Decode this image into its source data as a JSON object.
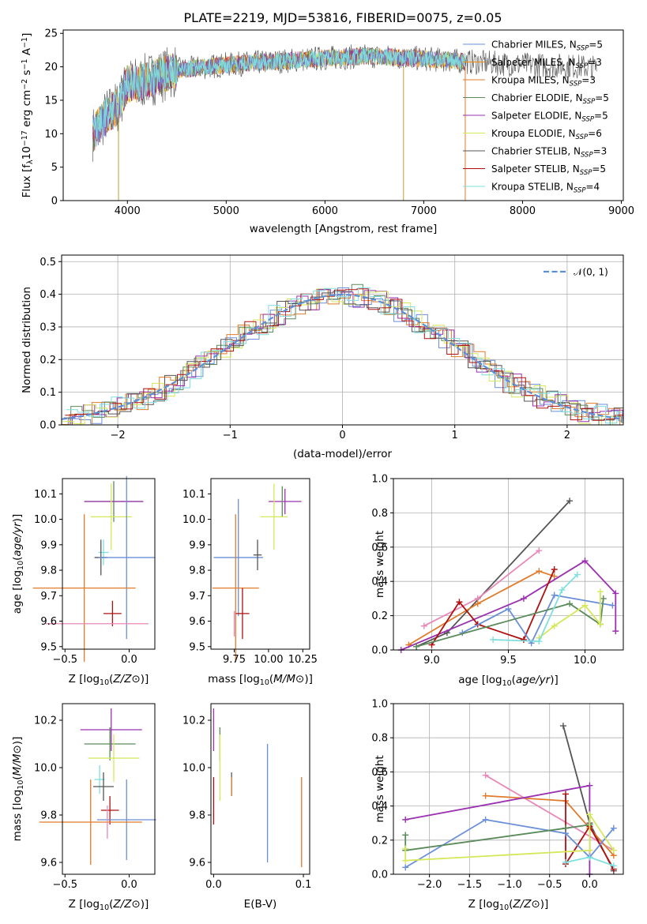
{
  "title": "PLATE=2219, MJD=53816, FIBERID=0075, z=0.05",
  "colors": {
    "Chabrier MILES": "#6a8fd8",
    "Salpeter MILES": "#ff8c00",
    "Kroupa MILES": "#e07b2a",
    "Chabrier ELODIE": "#5b8a5b",
    "Salpeter ELODIE": "#9b30b0",
    "Kroupa ELODIE": "#d4e85a",
    "Chabrier STELIB": "#555555",
    "Salpeter STELIB": "#b01010",
    "Kroupa STELIB": "#7fdede",
    "pink": "#e888b8",
    "normal": "#5b8fd8"
  },
  "chart_data": [
    {
      "id": "spectrum",
      "type": "line",
      "xlabel": "wavelength [Angstrom, rest frame]",
      "ylabel_parts": [
        "Flux [f",
        "λ",
        "10",
        "−17",
        " erg cm",
        "−2",
        " s",
        "−1",
        " A",
        "−1",
        "]"
      ],
      "xlim": [
        3350,
        9020
      ],
      "ylim": [
        0,
        25.5
      ],
      "xticks": [
        4000,
        5000,
        6000,
        7000,
        8000,
        9000
      ],
      "yticks": [
        0,
        5,
        10,
        15,
        20,
        25
      ],
      "continuum": {
        "x": [
          3600,
          3700,
          3800,
          3900,
          4000,
          4100,
          4300,
          4500,
          5000,
          5500,
          6000,
          6500,
          7000,
          7500,
          8000,
          8500,
          8800
        ],
        "y": [
          9,
          11,
          13,
          14,
          17.5,
          17.5,
          18.5,
          19.5,
          20.3,
          20.8,
          21.3,
          21.6,
          21.2,
          20.7,
          20.3,
          20.1,
          19.8
        ]
      },
      "legend": [
        {
          "name": "Chabrier MILES",
          "nssp": "5"
        },
        {
          "name": "Salpeter MILES",
          "nssp": "3"
        },
        {
          "name": "Kroupa MILES",
          "nssp": "3"
        },
        {
          "name": "Chabrier ELODIE",
          "nssp": "5"
        },
        {
          "name": "Salpeter ELODIE",
          "nssp": "5"
        },
        {
          "name": "Kroupa ELODIE",
          "nssp": "6"
        },
        {
          "name": "Chabrier STELIB",
          "nssp": "3"
        },
        {
          "name": "Salpeter STELIB",
          "nssp": "5"
        },
        {
          "name": "Kroupa STELIB",
          "nssp": "4"
        }
      ],
      "legend_placement": "right",
      "grid": false
    },
    {
      "id": "residuals",
      "type": "line",
      "xlabel": "(data-model)/error",
      "ylabel": "Normed distribution",
      "xlim": [
        -2.5,
        2.5
      ],
      "ylim": [
        0,
        0.52
      ],
      "xticks": [
        -2,
        -1,
        0,
        1,
        2
      ],
      "yticks": [
        0.0,
        0.1,
        0.2,
        0.3,
        0.4,
        0.5
      ],
      "legend_label": "𝒩(0, 1)",
      "legend_placement": "upper right",
      "grid": true
    },
    {
      "id": "age_vs_Z",
      "type": "scatter",
      "xlabel": "Z [log10(Z/Z⊙)]",
      "ylabel": "age  [log10(age/yr)]",
      "xlim": [
        -0.52,
        0.2
      ],
      "ylim": [
        9.49,
        10.16
      ],
      "xticks": [
        -0.5,
        0.0
      ],
      "yticks": [
        9.5,
        9.6,
        9.7,
        9.8,
        9.9,
        10.0,
        10.1
      ],
      "points": [
        {
          "c": "Chabrier ELODIE",
          "x": -0.12,
          "xe": 0.23,
          "y": 10.07,
          "ye": 0.08
        },
        {
          "c": "Salpeter ELODIE",
          "x": -0.12,
          "xe": 0.23,
          "y": 10.07,
          "ye": 0.0
        },
        {
          "c": "Kroupa ELODIE",
          "x": -0.14,
          "xe": 0.16,
          "y": 10.01,
          "ye": 0.13
        },
        {
          "c": "Kroupa STELIB",
          "x": -0.2,
          "xe": 0.04,
          "y": 9.87,
          "ye": 0.05
        },
        {
          "c": "Chabrier STELIB",
          "x": -0.22,
          "xe": 0.05,
          "y": 9.85,
          "ye": 0.07
        },
        {
          "c": "Chabrier MILES",
          "x": -0.02,
          "xe": 0.22,
          "y": 9.85,
          "ye": 0.32
        },
        {
          "c": "Kroupa MILES",
          "x": -0.35,
          "xe": 0.4,
          "y": 9.73,
          "ye": 0.29
        },
        {
          "c": "Salpeter STELIB",
          "x": -0.13,
          "xe": 0.07,
          "y": 9.63,
          "ye": 0.05
        },
        {
          "c": "pink",
          "x": -0.25,
          "xe": 0.4,
          "y": 9.59,
          "ye": 0.0
        }
      ]
    },
    {
      "id": "age_vs_mass",
      "type": "scatter",
      "xlabel": "mass [log10(M/M⊙)]",
      "xlim": [
        9.58,
        10.3
      ],
      "ylim": [
        9.49,
        10.16
      ],
      "xticks": [
        9.75,
        10.0,
        10.25
      ],
      "yticks": [
        9.5,
        9.6,
        9.7,
        9.8,
        9.9,
        10.0,
        10.1
      ],
      "points": [
        {
          "c": "Salpeter ELODIE",
          "x": 10.12,
          "xe": 0.12,
          "y": 10.07,
          "ye": 0.05
        },
        {
          "c": "Chabrier ELODIE",
          "x": 10.1,
          "xe": 0.0,
          "y": 10.07,
          "ye": 0.06
        },
        {
          "c": "Kroupa ELODIE",
          "x": 10.04,
          "xe": 0.1,
          "y": 10.01,
          "ye": 0.13
        },
        {
          "c": "Chabrier MILES",
          "x": 9.78,
          "xe": 0.18,
          "y": 9.85,
          "ye": 0.23
        },
        {
          "c": "Chabrier STELIB",
          "x": 9.92,
          "xe": 0.03,
          "y": 9.86,
          "ye": 0.06
        },
        {
          "c": "Kroupa STELIB",
          "x": 9.94,
          "xe": 0.0,
          "y": 9.88,
          "ye": 0.0
        },
        {
          "c": "Kroupa MILES",
          "x": 9.76,
          "xe": 0.17,
          "y": 9.73,
          "ye": 0.29
        },
        {
          "c": "Salpeter STELIB",
          "x": 9.81,
          "xe": 0.05,
          "y": 9.63,
          "ye": 0.1
        },
        {
          "c": "pink",
          "x": 9.75,
          "xe": 0.0,
          "y": 9.59,
          "ye": 0.05
        }
      ]
    },
    {
      "id": "weight_vs_age",
      "type": "line",
      "xlabel": "age  [log10(age/yr)]",
      "ylabel": "mass weight",
      "xlim": [
        8.75,
        10.25
      ],
      "ylim": [
        0,
        1.0
      ],
      "xticks": [
        9.0,
        9.5,
        10.0
      ],
      "yticks": [
        0.0,
        0.2,
        0.4,
        0.6,
        0.8,
        1.0
      ],
      "grid": true,
      "series": [
        {
          "c": "Chabrier STELIB",
          "x": [
            8.9,
            9.1,
            9.9
          ],
          "y": [
            0.02,
            0.1,
            0.87
          ]
        },
        {
          "c": "pink",
          "x": [
            8.95,
            9.3,
            9.7
          ],
          "y": [
            0.14,
            0.3,
            0.58
          ]
        },
        {
          "c": "Kroupa MILES",
          "x": [
            8.85,
            9.3,
            9.7,
            9.8
          ],
          "y": [
            0.03,
            0.27,
            0.46,
            0.43
          ]
        },
        {
          "c": "Salpeter ELODIE",
          "x": [
            8.8,
            9.6,
            10.0,
            10.2,
            10.2
          ],
          "y": [
            0.0,
            0.3,
            0.52,
            0.33,
            0.11
          ]
        },
        {
          "c": "Salpeter STELIB",
          "x": [
            9.0,
            9.18,
            9.3,
            9.6,
            9.8
          ],
          "y": [
            0.03,
            0.28,
            0.15,
            0.06,
            0.47
          ]
        },
        {
          "c": "Chabrier MILES",
          "x": [
            9.2,
            9.5,
            9.65,
            9.8,
            10.18
          ],
          "y": [
            0.1,
            0.24,
            0.04,
            0.32,
            0.26
          ]
        },
        {
          "c": "Chabrier ELODIE",
          "x": [
            8.9,
            9.9,
            10.1,
            10.12
          ],
          "y": [
            0.02,
            0.27,
            0.15,
            0.3
          ]
        },
        {
          "c": "Kroupa ELODIE",
          "x": [
            9.7,
            9.8,
            10.0,
            10.1,
            10.1
          ],
          "y": [
            0.07,
            0.14,
            0.26,
            0.15,
            0.34
          ]
        },
        {
          "c": "Kroupa STELIB",
          "x": [
            9.4,
            9.7,
            9.85,
            9.95
          ],
          "y": [
            0.06,
            0.05,
            0.35,
            0.44
          ]
        }
      ]
    },
    {
      "id": "mass_vs_Z",
      "type": "scatter",
      "xlabel": "Z [log10(Z/Z⊙)]",
      "ylabel": "mass [log10(M/M⊙)]",
      "xlim": [
        -0.52,
        0.2
      ],
      "ylim": [
        9.55,
        10.27
      ],
      "xticks": [
        -0.5,
        0.0
      ],
      "yticks": [
        9.6,
        9.8,
        10.0,
        10.2
      ],
      "points": [
        {
          "c": "Salpeter ELODIE",
          "x": -0.14,
          "xe": 0.24,
          "y": 10.16,
          "ye": 0.09
        },
        {
          "c": "Chabrier ELODIE",
          "x": -0.15,
          "xe": 0.2,
          "y": 10.1,
          "ye": 0.07
        },
        {
          "c": "Kroupa ELODIE",
          "x": -0.12,
          "xe": 0.2,
          "y": 10.04,
          "ye": 0.1
        },
        {
          "c": "Kroupa STELIB",
          "x": -0.23,
          "xe": 0.04,
          "y": 9.95,
          "ye": 0.06
        },
        {
          "c": "Chabrier STELIB",
          "x": -0.2,
          "xe": 0.08,
          "y": 9.92,
          "ye": 0.06
        },
        {
          "c": "Salpeter STELIB",
          "x": -0.15,
          "xe": 0.07,
          "y": 9.82,
          "ye": 0.06
        },
        {
          "c": "Chabrier MILES",
          "x": -0.02,
          "xe": 0.23,
          "y": 9.78,
          "ye": 0.17
        },
        {
          "c": "Kroupa MILES",
          "x": -0.3,
          "xe": 0.4,
          "y": 9.77,
          "ye": 0.18
        },
        {
          "c": "pink",
          "x": -0.17,
          "xe": 0.0,
          "y": 9.77,
          "ye": 0.07
        }
      ]
    },
    {
      "id": "mass_vs_EBV",
      "type": "scatter",
      "xlabel": "E(B-V)",
      "xlim": [
        -0.003,
        0.107
      ],
      "ylim": [
        9.55,
        10.27
      ],
      "xticks": [
        0.0,
        0.1
      ],
      "yticks": [
        9.6,
        9.8,
        10.0,
        10.2
      ],
      "points": [
        {
          "c": "Salpeter ELODIE",
          "x": 0.0,
          "y": 10.16,
          "ye": 0.09
        },
        {
          "c": "Chabrier ELODIE",
          "x": 0.007,
          "y": 10.1,
          "ye": 0.07
        },
        {
          "c": "Kroupa ELODIE",
          "x": 0.007,
          "y": 10.0,
          "ye": 0.14
        },
        {
          "c": "Chabrier STELIB",
          "x": 0.02,
          "y": 9.93,
          "ye": 0.05
        },
        {
          "c": "Kroupa MILES",
          "x": 0.02,
          "y": 9.92,
          "ye": 0.04
        },
        {
          "c": "Salpeter STELIB",
          "x": 0.0,
          "y": 9.86,
          "ye": 0.1
        },
        {
          "c": "Chabrier MILES",
          "x": 0.06,
          "y": 9.85,
          "ye": 0.25
        },
        {
          "c": "Kroupa MILES",
          "x": 0.098,
          "y": 9.77,
          "ye": 0.19
        }
      ]
    },
    {
      "id": "weight_vs_Z",
      "type": "line",
      "xlabel": "Z [log10(Z/Z⊙)]",
      "ylabel": "mass weight",
      "xlim": [
        -2.45,
        0.42
      ],
      "ylim": [
        0,
        1.0
      ],
      "xticks": [
        -2.0,
        -1.5,
        -1.0,
        -0.5,
        0.0
      ],
      "yticks": [
        0.0,
        0.2,
        0.4,
        0.6,
        0.8,
        1.0
      ],
      "grid": true,
      "series": [
        {
          "c": "Chabrier STELIB",
          "x": [
            -0.33,
            0.0,
            0.3
          ],
          "y": [
            0.87,
            0.3,
            0.02
          ]
        },
        {
          "c": "pink",
          "x": [
            -1.3,
            0.3
          ],
          "y": [
            0.58,
            0.14
          ]
        },
        {
          "c": "Kroupa MILES",
          "x": [
            -1.3,
            -0.3,
            0.0,
            0.3
          ],
          "y": [
            0.46,
            0.43,
            0.27,
            0.11
          ]
        },
        {
          "c": "Salpeter ELODIE",
          "x": [
            -2.3,
            0.0,
            0.0
          ],
          "y": [
            0.32,
            0.52,
            0.0
          ]
        },
        {
          "c": "Salpeter STELIB",
          "x": [
            -0.3,
            -0.3,
            0.0,
            0.3
          ],
          "y": [
            0.47,
            0.06,
            0.28,
            0.03
          ]
        },
        {
          "c": "Chabrier MILES",
          "x": [
            -2.3,
            -1.3,
            -0.3,
            0.0,
            0.3
          ],
          "y": [
            0.04,
            0.32,
            0.24,
            0.1,
            0.27
          ]
        },
        {
          "c": "Chabrier ELODIE",
          "x": [
            -2.3,
            -2.3,
            -0.3,
            0.0
          ],
          "y": [
            0.23,
            0.14,
            0.27,
            0.29
          ]
        },
        {
          "c": "Kroupa ELODIE",
          "x": [
            -2.3,
            -2.3,
            0.0,
            0.0,
            0.3
          ],
          "y": [
            0.15,
            0.08,
            0.14,
            0.35,
            0.14
          ]
        },
        {
          "c": "Kroupa STELIB",
          "x": [
            -0.3,
            0.0,
            0.3
          ],
          "y": [
            0.07,
            0.1,
            0.05
          ]
        }
      ]
    }
  ]
}
